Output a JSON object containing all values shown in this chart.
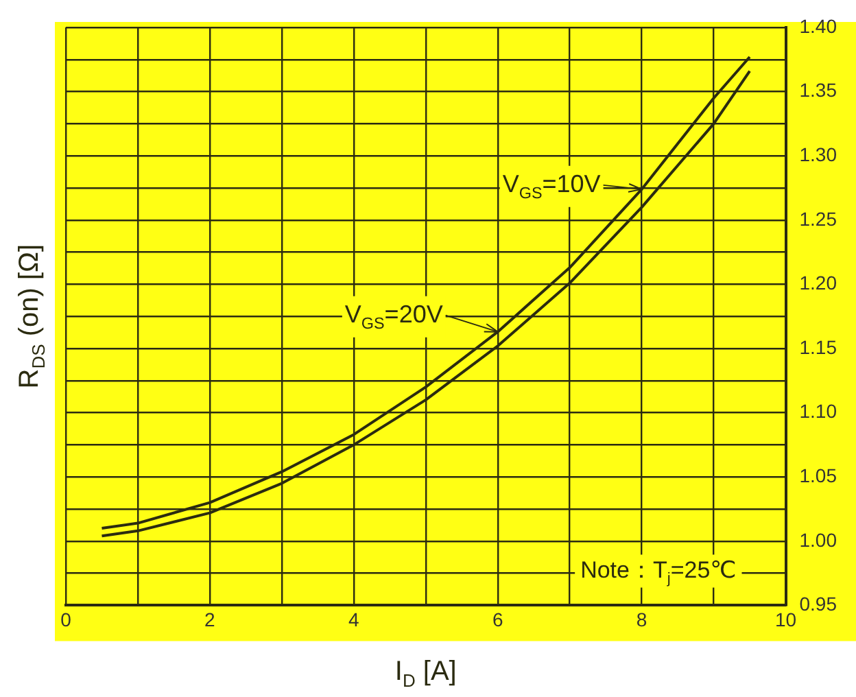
{
  "chart_data": {
    "type": "line",
    "xlabel": "I$_{D}$ [A]",
    "ylabel": "R$_{DS}$ (on) [Ω]",
    "x": [
      0.5,
      1,
      2,
      3,
      4,
      5,
      6,
      7,
      8,
      9,
      9.5
    ],
    "series": [
      {
        "color": "#2b2b10",
        "values": [
          1.01,
          1.014,
          1.03,
          1.054,
          1.083,
          1.12,
          1.163,
          1.213,
          1.274,
          1.345,
          1.377
        ]
      },
      {
        "color": "#2b2b10",
        "values": [
          1.004,
          1.008,
          1.022,
          1.045,
          1.075,
          1.11,
          1.152,
          1.201,
          1.26,
          1.325,
          1.366
        ]
      }
    ],
    "xlim": [
      0,
      10
    ],
    "xticks": [
      0,
      {
        "value": 1,
        "label": null
      },
      2,
      {
        "value": 3,
        "label": null
      },
      4,
      {
        "value": 5,
        "label": null
      },
      6,
      {
        "value": 7,
        "label": null
      },
      8,
      {
        "value": 9,
        "label": null
      },
      10
    ],
    "ylim": [
      0.95,
      1.4
    ],
    "yticks": [
      0.95,
      {
        "value": 0.975,
        "label": null
      },
      "1.00",
      {
        "value": 1.025,
        "label": null
      },
      1.05,
      {
        "value": 1.075,
        "label": null
      },
      "1.10",
      {
        "value": 1.125,
        "label": null
      },
      1.15,
      {
        "value": 1.175,
        "label": null
      },
      "1.20",
      {
        "value": 1.225,
        "label": null
      },
      1.25,
      {
        "value": 1.275,
        "label": null
      },
      "1.30",
      {
        "value": 1.325,
        "label": null
      },
      1.35,
      {
        "value": 1.375,
        "label": null
      },
      "1.40"
    ],
    "grid": true,
    "legend": false,
    "marker": "none",
    "line_style": "solid",
    "annotations": [
      {
        "text": "V$_{GS}$=10V",
        "x": 8,
        "y": 1.274
      },
      {
        "text": "V$_{GS}$=20V",
        "x": 6,
        "y": 1.163
      },
      "Note：T$_{j}$=25℃"
    ]
  }
}
